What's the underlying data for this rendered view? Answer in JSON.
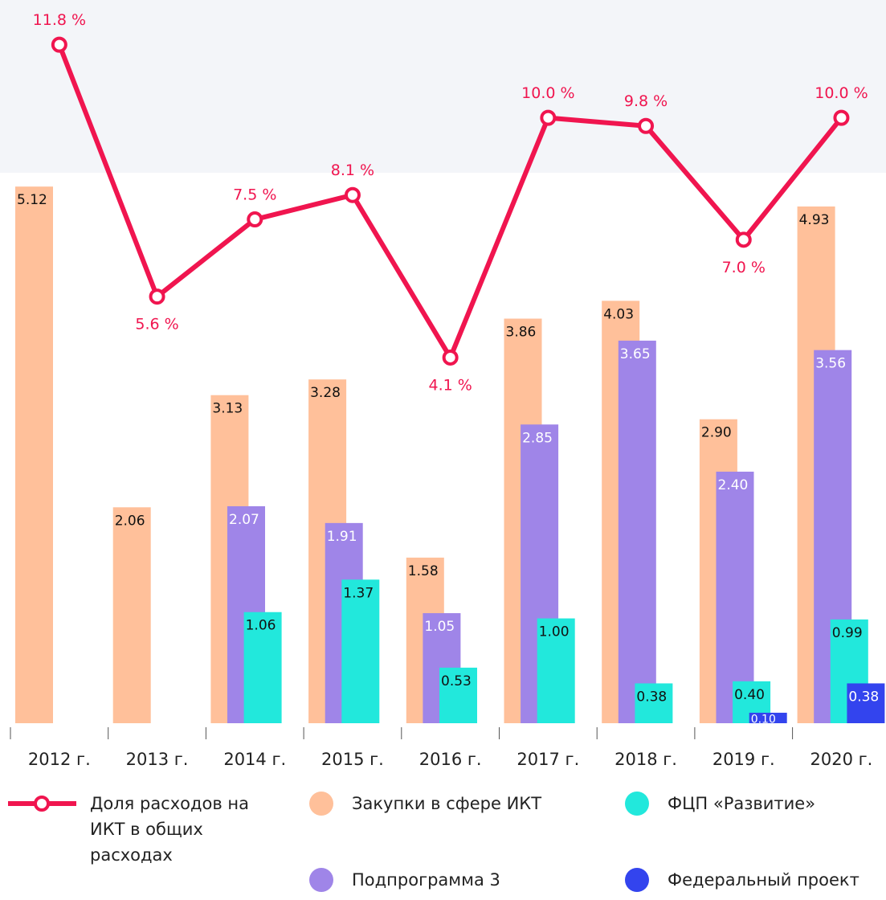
{
  "chart_data": {
    "type": "bar",
    "categories": [
      "2012 г.",
      "2013 г.",
      "2014 г.",
      "2015 г.",
      "2016 г.",
      "2017 г.",
      "2018 г.",
      "2019 г.",
      "2020 г."
    ],
    "ylim": [
      0,
      6.9
    ],
    "y2lim": [
      -4.9,
      12.9
    ],
    "series": [
      {
        "name": "Закупки в сфере ИКТ",
        "color": "#ffc09a",
        "values": [
          5.12,
          2.06,
          3.13,
          3.28,
          1.58,
          3.86,
          4.03,
          2.9,
          4.93
        ],
        "value_labels": [
          "5.12",
          "2.06",
          "3.13",
          "3.28",
          "1.58",
          "3.86",
          "4.03",
          "2.90",
          "4.93"
        ]
      },
      {
        "name": "Подпрограмма 3",
        "color": "#9f85e8",
        "values": [
          null,
          null,
          2.07,
          1.91,
          1.05,
          2.85,
          3.65,
          2.4,
          3.56
        ],
        "value_labels": [
          null,
          null,
          "2.07",
          "1.91",
          "1.05",
          "2.85",
          "3.65",
          "2.40",
          "3.56"
        ]
      },
      {
        "name": "ФЦП «Развитие»",
        "color": "#22e8dc",
        "values": [
          null,
          null,
          1.06,
          1.37,
          0.53,
          1.0,
          0.38,
          0.4,
          0.99
        ],
        "value_labels": [
          null,
          null,
          "1.06",
          "1.37",
          "0.53",
          "1.00",
          "0.38",
          "0.40",
          "0.99"
        ]
      },
      {
        "name": "Федеральный проект",
        "color": "#3344ee",
        "values": [
          null,
          null,
          null,
          null,
          null,
          null,
          null,
          0.1,
          0.38
        ],
        "value_labels": [
          null,
          null,
          null,
          null,
          null,
          null,
          null,
          "0.10",
          "0.38"
        ]
      },
      {
        "name": "Доля расходов на ИКТ в общих расходах",
        "color": "#f0154f",
        "type": "line",
        "axis": "y2",
        "values": [
          11.8,
          5.6,
          7.5,
          8.1,
          4.1,
          10.0,
          9.8,
          7.0,
          10.0
        ],
        "value_labels": [
          "11.8 %",
          "5.6 %",
          "7.5 %",
          "8.1 %",
          "4.1 %",
          "10.0 %",
          "9.8 %",
          "7.0 %",
          "10.0 %"
        ]
      }
    ]
  }
}
